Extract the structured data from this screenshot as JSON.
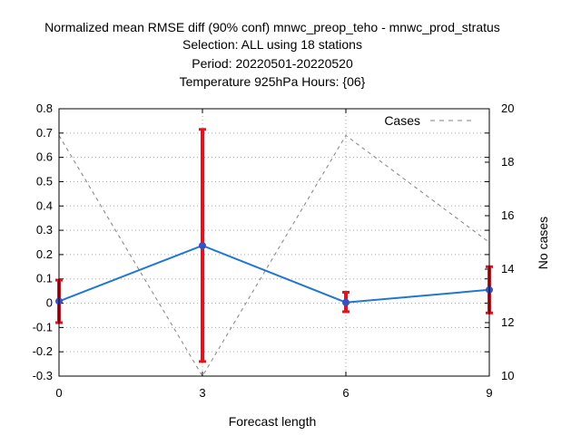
{
  "chart_data": {
    "type": "line",
    "title_lines": [
      "Normalized mean RMSE diff (90% conf) mnwc_preop_teho - mnwc_prod_stratus",
      "Selection: ALL using    18 stations",
      "Period: 20220501-20220520",
      "Temperature 925hPa   Hours: {06}"
    ],
    "xlabel": "Forecast length",
    "y2label": "No cases",
    "x_ticks": [
      0,
      3,
      6,
      9
    ],
    "xlim": [
      0,
      9
    ],
    "y_ticks": [
      "0.8",
      "0.7",
      "0.6",
      "0.5",
      "0.4",
      "0.3",
      "0.2",
      "0.1",
      "0",
      "-0.1",
      "-0.2",
      "-0.3"
    ],
    "ylim": [
      -0.3,
      0.8
    ],
    "y2_ticks": [
      "20",
      "18",
      "16",
      "14",
      "12",
      "10"
    ],
    "y2lim": [
      10,
      20
    ],
    "grid": true,
    "series": [
      {
        "axis": "left",
        "color": "#1f77d0",
        "errorbar_color": "#e8101a",
        "x": [
          0,
          3,
          6,
          9
        ],
        "y": [
          0.008,
          0.237,
          0.003,
          0.055
        ],
        "ci_low": [
          -0.08,
          -0.24,
          -0.035,
          -0.04
        ],
        "ci_high": [
          0.095,
          0.715,
          0.045,
          0.15
        ]
      },
      {
        "name": "Cases",
        "axis": "right",
        "color": "#808080",
        "dashed": true,
        "x": [
          0,
          3,
          6,
          9
        ],
        "y": [
          19,
          10,
          19,
          15
        ]
      }
    ],
    "legend_position": "top-right"
  }
}
